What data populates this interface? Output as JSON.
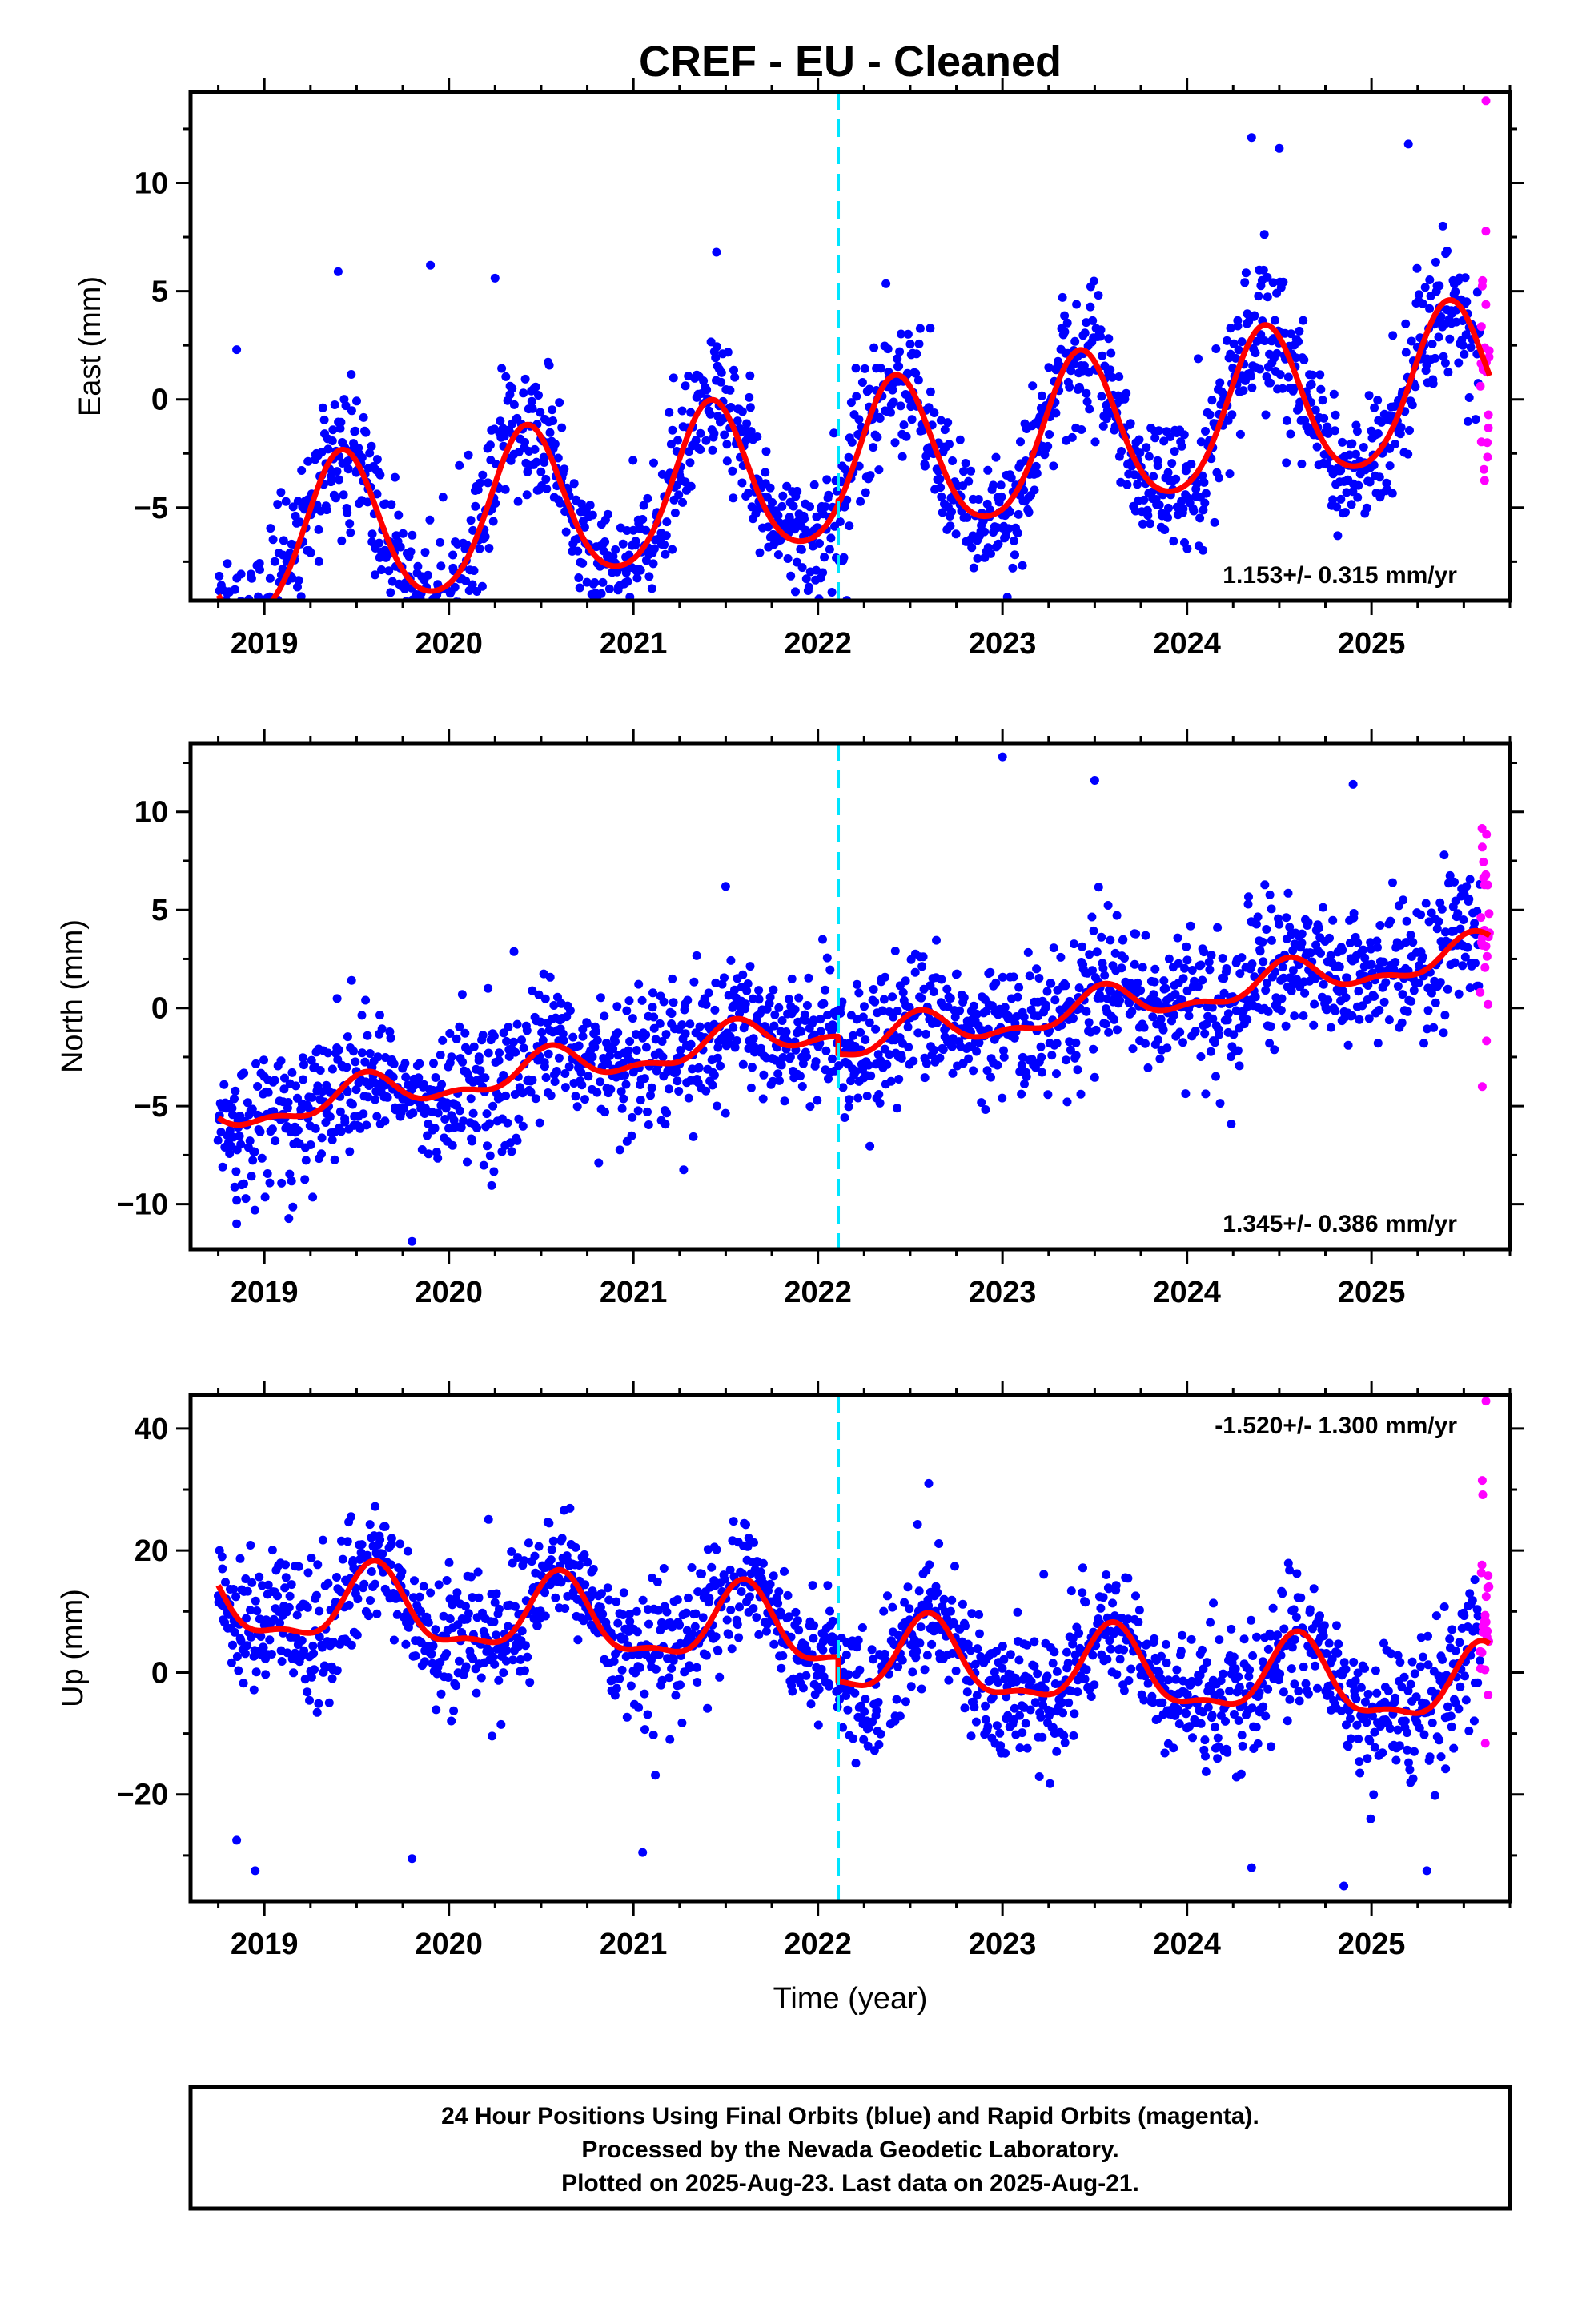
{
  "title": "CREF  - EU - Cleaned",
  "colors": {
    "final_orbits": "#0000ff",
    "rapid_orbits": "#ff00ff",
    "model_fit": "#ff0000",
    "event_marker": "#00e5ff",
    "frame": "#000000"
  },
  "chart_data": [
    {
      "type": "scatter",
      "name": "east",
      "ylabel": "East (mm)",
      "xlim": [
        2018.6,
        2025.75
      ],
      "ylim": [
        -9.3,
        14.2
      ],
      "xticks": [
        2019,
        2020,
        2021,
        2022,
        2023,
        2024,
        2025
      ],
      "xtick_labels": [
        "2019",
        "2020",
        "2021",
        "2022",
        "2023",
        "2024",
        "2025"
      ],
      "yticks": [
        -5,
        0,
        5,
        10
      ],
      "ytick_labels": [
        "−5",
        "0",
        "5",
        "10"
      ],
      "rate_text": "1.153+/- 0.315 mm/yr",
      "rate_position": "bottom-right",
      "event_line_x": 2022.11,
      "model": {
        "offset": -3.35,
        "rate": 1.153,
        "amplitude": 3.55,
        "phase_peak": 0.42,
        "semi_amplitude": 0.45,
        "step_at_event": 0.0
      },
      "scatter_noise": 1.45,
      "series": [
        {
          "name": "final_orbits",
          "color": "#0000ff",
          "x_range": [
            2018.75,
            2025.59
          ]
        },
        {
          "name": "rapid_orbits",
          "color": "#ff00ff",
          "x_range": [
            2025.59,
            2025.64
          ]
        }
      ],
      "outliers": [
        [
          2019.9,
          6.2
        ],
        [
          2020.25,
          5.6
        ],
        [
          2021.45,
          6.8
        ],
        [
          2024.35,
          12.1
        ],
        [
          2024.5,
          11.6
        ],
        [
          2025.2,
          11.8
        ],
        [
          2025.62,
          13.8
        ],
        [
          2019.95,
          -8.8
        ],
        [
          2018.85,
          2.3
        ],
        [
          2019.4,
          5.9
        ]
      ]
    },
    {
      "type": "scatter",
      "name": "north",
      "ylabel": "North (mm)",
      "xlim": [
        2018.6,
        2025.75
      ],
      "ylim": [
        -12.3,
        13.5
      ],
      "xticks": [
        2019,
        2020,
        2021,
        2022,
        2023,
        2024,
        2025
      ],
      "xtick_labels": [
        "2019",
        "2020",
        "2021",
        "2022",
        "2023",
        "2024",
        "2025"
      ],
      "yticks": [
        -10,
        -5,
        0,
        5,
        10
      ],
      "ytick_labels": [
        "−10",
        "−5",
        "0",
        "5",
        "10"
      ],
      "rate_text": "1.345+/- 0.386 mm/yr",
      "rate_position": "bottom-right",
      "event_line_x": 2022.11,
      "model": {
        "offset": -1.6,
        "rate": 1.345,
        "amplitude": 0.8,
        "phase_peak": 0.55,
        "semi_amplitude": 0.4,
        "step_at_event": 0.9
      },
      "scatter_noise": 1.7,
      "series": [
        {
          "name": "final_orbits",
          "color": "#0000ff",
          "x_range": [
            2018.75,
            2025.59
          ]
        },
        {
          "name": "rapid_orbits",
          "color": "#ff00ff",
          "x_range": [
            2025.59,
            2025.64
          ]
        }
      ],
      "outliers": [
        [
          2023.0,
          12.8
        ],
        [
          2023.5,
          11.6
        ],
        [
          2024.9,
          11.4
        ],
        [
          2019.8,
          -11.9
        ],
        [
          2018.85,
          -11.0
        ],
        [
          2018.85,
          -9.8
        ],
        [
          2021.5,
          6.2
        ],
        [
          2025.6,
          8.2
        ],
        [
          2025.6,
          -4.0
        ]
      ]
    },
    {
      "type": "scatter",
      "name": "up",
      "ylabel": "Up (mm)",
      "xlabel": "Time (year)",
      "xlim": [
        2018.6,
        2025.75
      ],
      "ylim": [
        -37.5,
        45.5
      ],
      "xticks": [
        2019,
        2020,
        2021,
        2022,
        2023,
        2024,
        2025
      ],
      "xtick_labels": [
        "2019",
        "2020",
        "2021",
        "2022",
        "2023",
        "2024",
        "2025"
      ],
      "yticks": [
        -20,
        0,
        20,
        40
      ],
      "ytick_labels": [
        "−20",
        "0",
        "20",
        "40"
      ],
      "rate_text": "-1.520+/- 1.300 mm/yr",
      "rate_position": "top-right",
      "event_line_x": 2022.11,
      "model": {
        "offset": 4.5,
        "rate": -1.52,
        "amplitude": 6.0,
        "phase_peak": 0.6,
        "semi_amplitude": 2.2,
        "step_at_event": 4.0
      },
      "scatter_noise": 5.2,
      "series": [
        {
          "name": "final_orbits",
          "color": "#0000ff",
          "x_range": [
            2018.75,
            2025.59
          ]
        },
        {
          "name": "rapid_orbits",
          "color": "#ff00ff",
          "x_range": [
            2025.59,
            2025.64
          ]
        }
      ],
      "outliers": [
        [
          2018.85,
          -27.5
        ],
        [
          2018.95,
          -32.5
        ],
        [
          2019.8,
          -30.5
        ],
        [
          2021.05,
          -29.5
        ],
        [
          2024.35,
          -32.0
        ],
        [
          2024.85,
          -35.0
        ],
        [
          2025.3,
          -32.5
        ],
        [
          2025.62,
          44.5
        ],
        [
          2025.6,
          31.5
        ],
        [
          2022.6,
          31.0
        ]
      ]
    }
  ],
  "footer": {
    "lines": [
      "24 Hour Positions Using Final Orbits (blue) and Rapid Orbits (magenta).",
      "Processed by the Nevada Geodetic Laboratory.",
      "Plotted on 2025-Aug-23. Last data on 2025-Aug-21."
    ]
  }
}
